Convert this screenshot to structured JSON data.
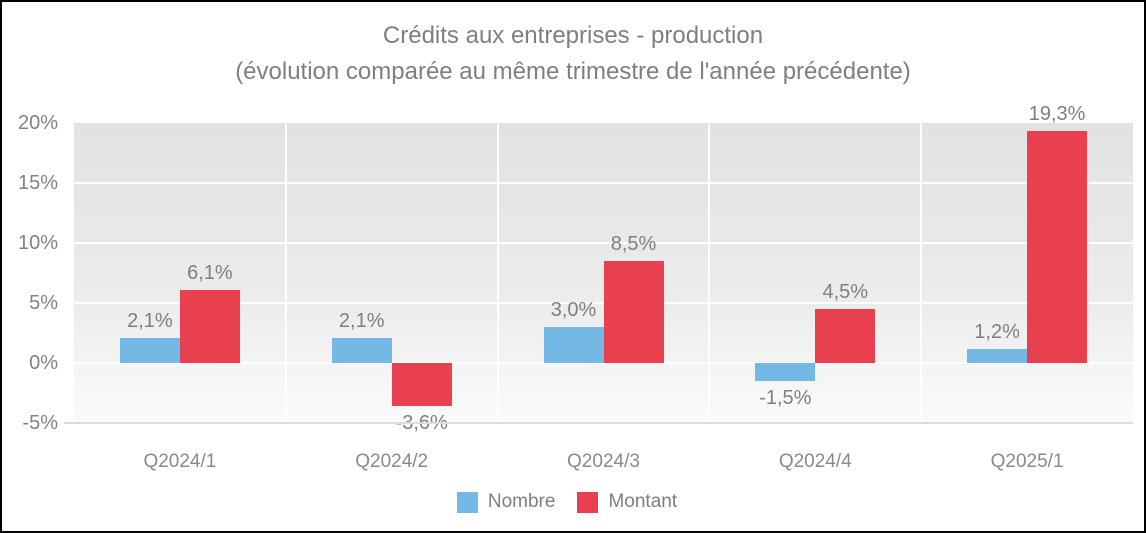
{
  "title": {
    "line1": "Crédits aux entreprises - production",
    "line2": "(évolution comparée au même trimestre de l'année précédente)"
  },
  "chart_data": {
    "type": "bar",
    "categories": [
      "Q2024/1",
      "Q2024/2",
      "Q2024/3",
      "Q2024/4",
      "Q2025/1"
    ],
    "series": [
      {
        "name": "Nombre",
        "color": "#74b9e6",
        "values": [
          2.1,
          2.1,
          3.0,
          -1.5,
          1.2
        ],
        "labels": [
          "2,1%",
          "2,1%",
          "3,0%",
          "-1,5%",
          "1,2%"
        ]
      },
      {
        "name": "Montant",
        "color": "#e8404e",
        "values": [
          6.1,
          -3.6,
          8.5,
          4.5,
          19.3
        ],
        "labels": [
          "6,1%",
          "-3,6%",
          "8,5%",
          "4,5%",
          "19,3%"
        ]
      }
    ],
    "y_ticks": [
      {
        "value": 20,
        "label": "20%"
      },
      {
        "value": 15,
        "label": "15%"
      },
      {
        "value": 10,
        "label": "10%"
      },
      {
        "value": 5,
        "label": "5%"
      },
      {
        "value": 0,
        "label": "0%"
      },
      {
        "value": -5,
        "label": "-5%"
      }
    ],
    "ylim": [
      -5,
      20
    ],
    "grid": true,
    "legend_position": "bottom"
  }
}
